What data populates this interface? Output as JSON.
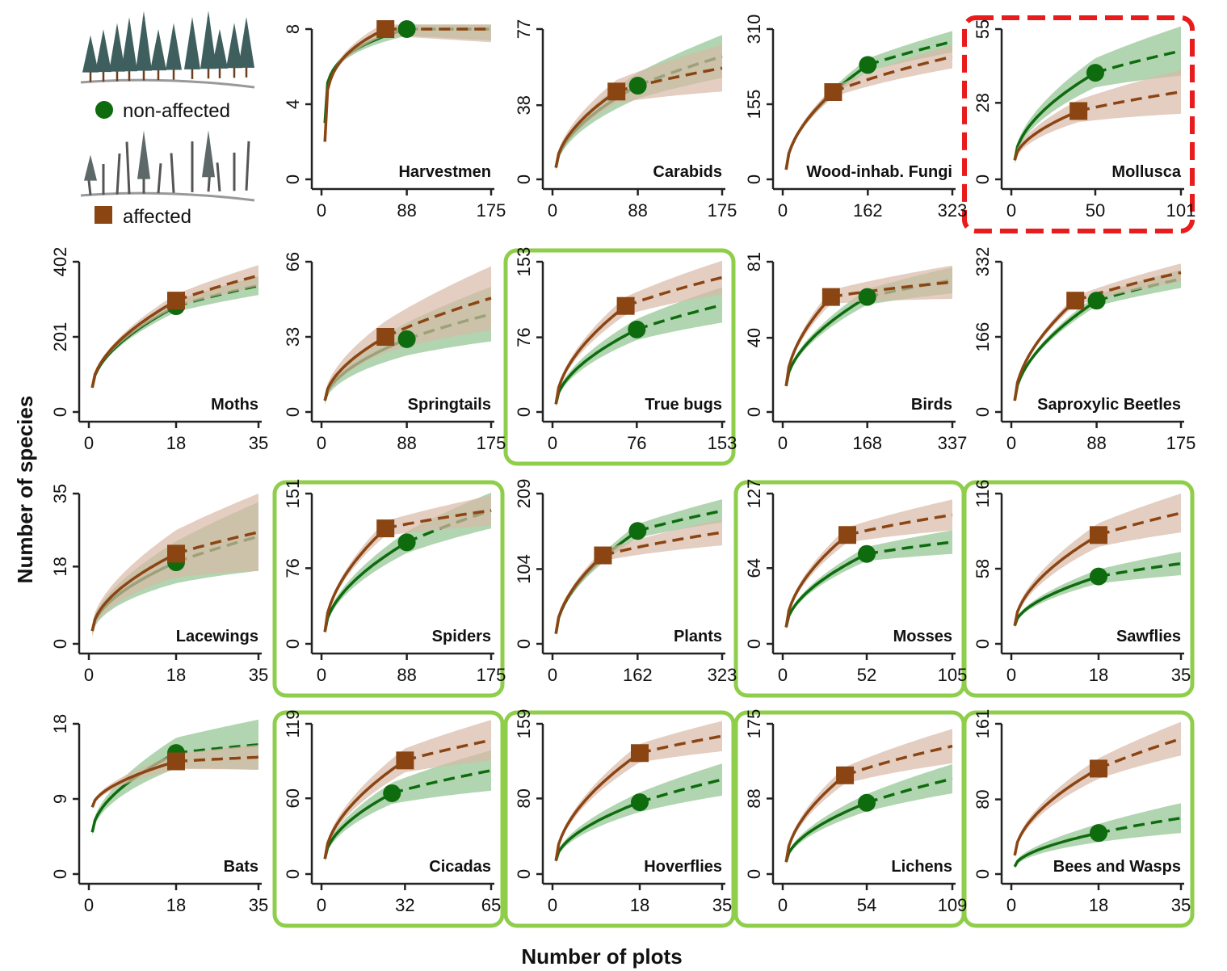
{
  "figure": {
    "xlabel": "Number of plots",
    "ylabel": "Number of species"
  },
  "colors": {
    "non_affected": "#0e6b0e",
    "affected": "#8b4513",
    "non_affected_band": "#8fc38f",
    "affected_band": "#d9b8a6",
    "highlight_positive": "#8fce4a",
    "highlight_negative": "#e81c1c"
  },
  "legend": {
    "non_affected_label": "non-affected",
    "affected_label": "affected",
    "non_affected_icon": "standing-forest-icon",
    "affected_icon": "disturbed-forest-icon"
  },
  "chart_data": [
    {
      "type": "line",
      "title": "Harvestmen",
      "row": 0,
      "col": 1,
      "xticks": [
        "0",
        "88",
        "175"
      ],
      "yticks": [
        "0",
        "4",
        "8"
      ],
      "xlim": [
        0,
        175
      ],
      "ylim": [
        0,
        8
      ],
      "highlight": "none",
      "series": [
        {
          "name": "non-affected",
          "x_obs": 88,
          "y_obs": 8,
          "y_start": 3,
          "y_end": 8,
          "band": 0.6,
          "shape": "fast"
        },
        {
          "name": "affected",
          "x_obs": 66,
          "y_obs": 8,
          "y_start": 2,
          "y_end": 8,
          "band": 0.7,
          "shape": "fast"
        }
      ]
    },
    {
      "type": "line",
      "title": "Carabids",
      "row": 0,
      "col": 2,
      "xticks": [
        "0",
        "88",
        "175"
      ],
      "yticks": [
        "0",
        "38",
        "77"
      ],
      "xlim": [
        0,
        175
      ],
      "ylim": [
        0,
        77
      ],
      "highlight": "none",
      "series": [
        {
          "name": "non-affected",
          "x_obs": 88,
          "y_obs": 48,
          "y_start": 6,
          "y_end": 63,
          "band": 11
        },
        {
          "name": "affected",
          "x_obs": 66,
          "y_obs": 45,
          "y_start": 6,
          "y_end": 57,
          "band": 12
        }
      ]
    },
    {
      "type": "line",
      "title": "Wood-inhab. Fungi",
      "row": 0,
      "col": 3,
      "xticks": [
        "0",
        "162",
        "323"
      ],
      "yticks": [
        "0",
        "155",
        "310"
      ],
      "xlim": [
        0,
        323
      ],
      "ylim": [
        0,
        310
      ],
      "highlight": "none",
      "series": [
        {
          "name": "non-affected",
          "x_obs": 162,
          "y_obs": 236,
          "y_start": 20,
          "y_end": 284,
          "band": 22
        },
        {
          "name": "affected",
          "x_obs": 96,
          "y_obs": 180,
          "y_start": 20,
          "y_end": 253,
          "band": 24
        }
      ]
    },
    {
      "type": "line",
      "title": "Mollusca",
      "row": 0,
      "col": 4,
      "xticks": [
        "0",
        "50",
        "101"
      ],
      "yticks": [
        "0",
        "28",
        "55"
      ],
      "xlim": [
        0,
        101
      ],
      "ylim": [
        0,
        55
      ],
      "highlight": "negative",
      "series": [
        {
          "name": "non-affected",
          "x_obs": 50,
          "y_obs": 39,
          "y_start": 7,
          "y_end": 47,
          "band": 9
        },
        {
          "name": "affected",
          "x_obs": 40,
          "y_obs": 25,
          "y_start": 7,
          "y_end": 32,
          "band": 8
        }
      ]
    },
    {
      "type": "line",
      "title": "Moths",
      "row": 1,
      "col": 0,
      "xticks": [
        "0",
        "18",
        "35"
      ],
      "yticks": [
        "0",
        "201",
        "402"
      ],
      "xlim": [
        0,
        35
      ],
      "ylim": [
        0,
        402
      ],
      "highlight": "none",
      "series": [
        {
          "name": "non-affected",
          "x_obs": 18,
          "y_obs": 283,
          "y_start": 65,
          "y_end": 338,
          "band": 25
        },
        {
          "name": "affected",
          "x_obs": 18,
          "y_obs": 298,
          "y_start": 65,
          "y_end": 365,
          "band": 28
        }
      ]
    },
    {
      "type": "line",
      "title": "Springtails",
      "row": 1,
      "col": 1,
      "xticks": [
        "0",
        "88",
        "175"
      ],
      "yticks": [
        "0",
        "33",
        "66"
      ],
      "xlim": [
        0,
        175
      ],
      "ylim": [
        0,
        66
      ],
      "highlight": "none",
      "series": [
        {
          "name": "non-affected",
          "x_obs": 88,
          "y_obs": 32,
          "y_start": 5,
          "y_end": 43,
          "band": 12
        },
        {
          "name": "affected",
          "x_obs": 66,
          "y_obs": 33,
          "y_start": 5,
          "y_end": 50,
          "band": 14
        }
      ]
    },
    {
      "type": "line",
      "title": "True bugs",
      "row": 1,
      "col": 2,
      "xticks": [
        "0",
        "76",
        "153"
      ],
      "yticks": [
        "0",
        "76",
        "153"
      ],
      "xlim": [
        0,
        153
      ],
      "ylim": [
        0,
        153
      ],
      "highlight": "positive",
      "series": [
        {
          "name": "non-affected",
          "x_obs": 76,
          "y_obs": 84,
          "y_start": 8,
          "y_end": 109,
          "band": 18
        },
        {
          "name": "affected",
          "x_obs": 66,
          "y_obs": 108,
          "y_start": 8,
          "y_end": 137,
          "band": 17
        }
      ]
    },
    {
      "type": "line",
      "title": "Birds",
      "row": 1,
      "col": 3,
      "xticks": [
        "0",
        "168",
        "337"
      ],
      "yticks": [
        "0",
        "40",
        "81"
      ],
      "xlim": [
        0,
        337
      ],
      "ylim": [
        0,
        81
      ],
      "highlight": "none",
      "series": [
        {
          "name": "non-affected",
          "x_obs": 168,
          "y_obs": 62,
          "y_start": 14,
          "y_end": 71,
          "band": 7
        },
        {
          "name": "affected",
          "x_obs": 96,
          "y_obs": 62,
          "y_start": 14,
          "y_end": 70,
          "band": 9
        }
      ]
    },
    {
      "type": "line",
      "title": "Saproxylic Beetles",
      "row": 1,
      "col": 4,
      "xticks": [
        "0",
        "88",
        "175"
      ],
      "yticks": [
        "0",
        "166",
        "332"
      ],
      "xlim": [
        0,
        175
      ],
      "ylim": [
        0,
        332
      ],
      "highlight": "none",
      "series": [
        {
          "name": "non-affected",
          "x_obs": 88,
          "y_obs": 246,
          "y_start": 25,
          "y_end": 294,
          "band": 20
        },
        {
          "name": "affected",
          "x_obs": 66,
          "y_obs": 246,
          "y_start": 25,
          "y_end": 308,
          "band": 20
        }
      ]
    },
    {
      "type": "line",
      "title": "Lacewings",
      "row": 2,
      "col": 0,
      "xticks": [
        "0",
        "18",
        "35"
      ],
      "yticks": [
        "0",
        "18",
        "35"
      ],
      "xlim": [
        0,
        35
      ],
      "ylim": [
        0,
        35
      ],
      "highlight": "none",
      "series": [
        {
          "name": "non-affected",
          "x_obs": 18,
          "y_obs": 19,
          "y_start": 3,
          "y_end": 25,
          "band": 8
        },
        {
          "name": "affected",
          "x_obs": 18,
          "y_obs": 21,
          "y_start": 3,
          "y_end": 26,
          "band": 9
        }
      ]
    },
    {
      "type": "line",
      "title": "Spiders",
      "row": 2,
      "col": 1,
      "xticks": [
        "0",
        "88",
        "175"
      ],
      "yticks": [
        "0",
        "76",
        "151"
      ],
      "xlim": [
        0,
        175
      ],
      "ylim": [
        0,
        151
      ],
      "highlight": "positive",
      "series": [
        {
          "name": "non-affected",
          "x_obs": 88,
          "y_obs": 102,
          "y_start": 12,
          "y_end": 134,
          "band": 18
        },
        {
          "name": "affected",
          "x_obs": 66,
          "y_obs": 116,
          "y_start": 12,
          "y_end": 134,
          "band": 15
        }
      ]
    },
    {
      "type": "line",
      "title": "Plants",
      "row": 2,
      "col": 2,
      "xticks": [
        "0",
        "162",
        "323"
      ],
      "yticks": [
        "0",
        "104",
        "209"
      ],
      "xlim": [
        0,
        323
      ],
      "ylim": [
        0,
        209
      ],
      "highlight": "none",
      "series": [
        {
          "name": "non-affected",
          "x_obs": 162,
          "y_obs": 157,
          "y_start": 14,
          "y_end": 185,
          "band": 16
        },
        {
          "name": "affected",
          "x_obs": 96,
          "y_obs": 123,
          "y_start": 14,
          "y_end": 155,
          "band": 18
        }
      ]
    },
    {
      "type": "line",
      "title": "Mosses",
      "row": 2,
      "col": 3,
      "xticks": [
        "0",
        "52",
        "105"
      ],
      "yticks": [
        "0",
        "64",
        "127"
      ],
      "xlim": [
        0,
        105
      ],
      "ylim": [
        0,
        127
      ],
      "highlight": "positive",
      "series": [
        {
          "name": "non-affected",
          "x_obs": 52,
          "y_obs": 76,
          "y_start": 14,
          "y_end": 86,
          "band": 10
        },
        {
          "name": "affected",
          "x_obs": 40,
          "y_obs": 92,
          "y_start": 14,
          "y_end": 109,
          "band": 13
        }
      ]
    },
    {
      "type": "line",
      "title": "Sawflies",
      "row": 2,
      "col": 4,
      "xticks": [
        "0",
        "18",
        "35"
      ],
      "yticks": [
        "0",
        "58",
        "116"
      ],
      "xlim": [
        0,
        35
      ],
      "ylim": [
        0,
        116
      ],
      "highlight": "positive",
      "series": [
        {
          "name": "non-affected",
          "x_obs": 18,
          "y_obs": 52,
          "y_start": 14,
          "y_end": 62,
          "band": 9
        },
        {
          "name": "affected",
          "x_obs": 18,
          "y_obs": 84,
          "y_start": 14,
          "y_end": 101,
          "band": 15
        }
      ]
    },
    {
      "type": "line",
      "title": "Bats",
      "row": 3,
      "col": 0,
      "xticks": [
        "0",
        "18",
        "35"
      ],
      "yticks": [
        "0",
        "9",
        "18"
      ],
      "xlim": [
        0,
        35
      ],
      "ylim": [
        0,
        18
      ],
      "highlight": "none",
      "series": [
        {
          "name": "non-affected",
          "x_obs": 18,
          "y_obs": 14.5,
          "y_start": 5,
          "y_end": 15.5,
          "band": 3
        },
        {
          "name": "affected",
          "x_obs": 18,
          "y_obs": 13.5,
          "y_start": 8,
          "y_end": 14,
          "band": 1.5
        }
      ]
    },
    {
      "type": "line",
      "title": "Cicadas",
      "row": 3,
      "col": 1,
      "xticks": [
        "0",
        "32",
        "65"
      ],
      "yticks": [
        "0",
        "60",
        "119"
      ],
      "xlim": [
        0,
        65
      ],
      "ylim": [
        0,
        119
      ],
      "highlight": "positive",
      "series": [
        {
          "name": "non-affected",
          "x_obs": 27,
          "y_obs": 64,
          "y_start": 12,
          "y_end": 82,
          "band": 16
        },
        {
          "name": "affected",
          "x_obs": 32,
          "y_obs": 90,
          "y_start": 12,
          "y_end": 106,
          "band": 16
        }
      ]
    },
    {
      "type": "line",
      "title": "Hoverflies",
      "row": 3,
      "col": 2,
      "xticks": [
        "0",
        "18",
        "35"
      ],
      "yticks": [
        "0",
        "80",
        "159"
      ],
      "xlim": [
        0,
        35
      ],
      "ylim": [
        0,
        159
      ],
      "highlight": "positive",
      "series": [
        {
          "name": "non-affected",
          "x_obs": 18,
          "y_obs": 76,
          "y_start": 14,
          "y_end": 100,
          "band": 17
        },
        {
          "name": "affected",
          "x_obs": 18,
          "y_obs": 128,
          "y_start": 14,
          "y_end": 146,
          "band": 16
        }
      ]
    },
    {
      "type": "line",
      "title": "Lichens",
      "row": 3,
      "col": 3,
      "xticks": [
        "0",
        "54",
        "109"
      ],
      "yticks": [
        "0",
        "88",
        "175"
      ],
      "xlim": [
        0,
        109
      ],
      "ylim": [
        0,
        175
      ],
      "highlight": "positive",
      "series": [
        {
          "name": "non-affected",
          "x_obs": 54,
          "y_obs": 83,
          "y_start": 14,
          "y_end": 111,
          "band": 17
        },
        {
          "name": "affected",
          "x_obs": 40,
          "y_obs": 115,
          "y_start": 14,
          "y_end": 149,
          "band": 20
        }
      ]
    },
    {
      "type": "line",
      "title": "Bees and Wasps",
      "row": 3,
      "col": 4,
      "xticks": [
        "0",
        "18",
        "35"
      ],
      "yticks": [
        "0",
        "80",
        "161"
      ],
      "xlim": [
        0,
        35
      ],
      "ylim": [
        0,
        161
      ],
      "highlight": "positive",
      "series": [
        {
          "name": "non-affected",
          "x_obs": 18,
          "y_obs": 44,
          "y_start": 8,
          "y_end": 60,
          "band": 16
        },
        {
          "name": "affected",
          "x_obs": 18,
          "y_obs": 113,
          "y_start": 20,
          "y_end": 145,
          "band": 18
        }
      ]
    }
  ]
}
